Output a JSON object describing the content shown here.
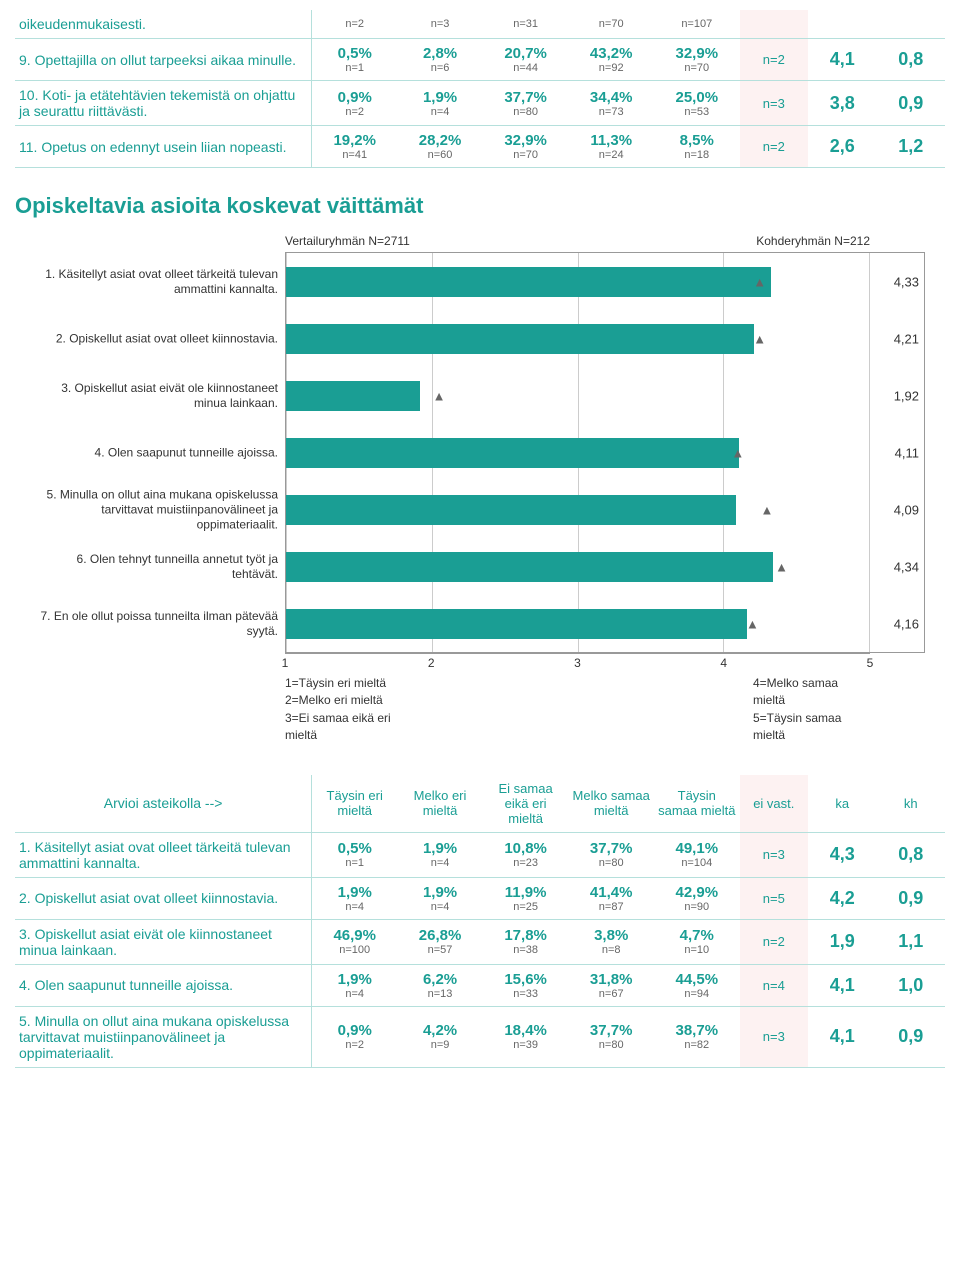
{
  "colors": {
    "accent": "#1a9e94",
    "row_border": "#b5e0dc",
    "eivast_bg": "#fdf2f2",
    "bar": "#1a9e94",
    "grid": "#cccccc",
    "axis": "#999999",
    "marker": "#666666"
  },
  "top_table": {
    "header_n": [
      "n=2",
      "n=3",
      "n=31",
      "n=70",
      "n=107"
    ],
    "header_trailing": "oikeudenmukaisesti.",
    "rows": [
      {
        "label": "9. Opettajilla on ollut tarpeeksi aikaa minulle.",
        "cells": [
          {
            "p": "0,5%",
            "n": "n=1"
          },
          {
            "p": "2,8%",
            "n": "n=6"
          },
          {
            "p": "20,7%",
            "n": "n=44"
          },
          {
            "p": "43,2%",
            "n": "n=92"
          },
          {
            "p": "32,9%",
            "n": "n=70"
          }
        ],
        "eivast": "n=2",
        "ka": "4,1",
        "kh": "0,8"
      },
      {
        "label": "10. Koti- ja etätehtävien tekemistä on ohjattu ja seurattu riittävästi.",
        "cells": [
          {
            "p": "0,9%",
            "n": "n=2"
          },
          {
            "p": "1,9%",
            "n": "n=4"
          },
          {
            "p": "37,7%",
            "n": "n=80"
          },
          {
            "p": "34,4%",
            "n": "n=73"
          },
          {
            "p": "25,0%",
            "n": "n=53"
          }
        ],
        "eivast": "n=3",
        "ka": "3,8",
        "kh": "0,9"
      },
      {
        "label": "11. Opetus on edennyt usein liian nopeasti.",
        "cells": [
          {
            "p": "19,2%",
            "n": "n=41"
          },
          {
            "p": "28,2%",
            "n": "n=60"
          },
          {
            "p": "32,9%",
            "n": "n=70"
          },
          {
            "p": "11,3%",
            "n": "n=24"
          },
          {
            "p": "8,5%",
            "n": "n=18"
          }
        ],
        "eivast": "n=2",
        "ka": "2,6",
        "kh": "1,2"
      }
    ]
  },
  "section_title": "Opiskeltavia asioita koskevat väittämät",
  "chart": {
    "type": "horizontal_bar",
    "top_left": "Vertailuryhmän N=2711",
    "top_right": "Kohderyhmän N=212",
    "xmin": 1,
    "xmax": 5,
    "xticks": [
      1,
      2,
      3,
      4,
      5
    ],
    "legend_left": [
      "1=Täysin eri mieltä",
      "2=Melko eri mieltä",
      "3=Ei samaa eikä eri mieltä"
    ],
    "legend_right": [
      "4=Melko samaa mieltä",
      "5=Täysin samaa mieltä"
    ],
    "marker_symbol": "▲",
    "bars": [
      {
        "label": "1. Käsitellyt asiat ovat olleet tärkeitä tulevan ammattini kannalta.",
        "value": 4.33,
        "marker": 4.25,
        "text": "4,33"
      },
      {
        "label": "2. Opiskellut asiat ovat olleet kiinnostavia.",
        "value": 4.21,
        "marker": 4.25,
        "text": "4,21"
      },
      {
        "label": "3. Opiskellut asiat eivät ole kiinnostaneet minua lainkaan.",
        "value": 1.92,
        "marker": 2.05,
        "text": "1,92"
      },
      {
        "label": "4. Olen saapunut tunneille ajoissa.",
        "value": 4.11,
        "marker": 4.1,
        "text": "4,11"
      },
      {
        "label": "5. Minulla on ollut aina mukana opiskelussa tarvittavat muistiinpanovälineet ja oppimateriaalit.",
        "value": 4.09,
        "marker": 4.3,
        "text": "4,09"
      },
      {
        "label": "6. Olen tehnyt tunneilla annetut työt ja tehtävät.",
        "value": 4.34,
        "marker": 4.4,
        "text": "4,34"
      },
      {
        "label": "7. En ole ollut poissa tunneilta ilman pätevää syytä.",
        "value": 4.16,
        "marker": 4.2,
        "text": "4,16"
      }
    ]
  },
  "bottom_table": {
    "header_label": "Arvioi asteikolla -->",
    "columns": [
      "Täysin eri mieltä",
      "Melko eri mieltä",
      "Ei samaa eikä eri mieltä",
      "Melko samaa mieltä",
      "Täysin samaa mieltä",
      "ei vast.",
      "ka",
      "kh"
    ],
    "rows": [
      {
        "label": "1. Käsitellyt asiat ovat olleet tärkeitä tulevan ammattini kannalta.",
        "cells": [
          {
            "p": "0,5%",
            "n": "n=1"
          },
          {
            "p": "1,9%",
            "n": "n=4"
          },
          {
            "p": "10,8%",
            "n": "n=23"
          },
          {
            "p": "37,7%",
            "n": "n=80"
          },
          {
            "p": "49,1%",
            "n": "n=104"
          }
        ],
        "eivast": "n=3",
        "ka": "4,3",
        "kh": "0,8"
      },
      {
        "label": "2. Opiskellut asiat ovat olleet kiinnostavia.",
        "cells": [
          {
            "p": "1,9%",
            "n": "n=4"
          },
          {
            "p": "1,9%",
            "n": "n=4"
          },
          {
            "p": "11,9%",
            "n": "n=25"
          },
          {
            "p": "41,4%",
            "n": "n=87"
          },
          {
            "p": "42,9%",
            "n": "n=90"
          }
        ],
        "eivast": "n=5",
        "ka": "4,2",
        "kh": "0,9"
      },
      {
        "label": "3. Opiskellut asiat eivät ole kiinnostaneet minua lainkaan.",
        "cells": [
          {
            "p": "46,9%",
            "n": "n=100"
          },
          {
            "p": "26,8%",
            "n": "n=57"
          },
          {
            "p": "17,8%",
            "n": "n=38"
          },
          {
            "p": "3,8%",
            "n": "n=8"
          },
          {
            "p": "4,7%",
            "n": "n=10"
          }
        ],
        "eivast": "n=2",
        "ka": "1,9",
        "kh": "1,1"
      },
      {
        "label": "4. Olen saapunut tunneille ajoissa.",
        "cells": [
          {
            "p": "1,9%",
            "n": "n=4"
          },
          {
            "p": "6,2%",
            "n": "n=13"
          },
          {
            "p": "15,6%",
            "n": "n=33"
          },
          {
            "p": "31,8%",
            "n": "n=67"
          },
          {
            "p": "44,5%",
            "n": "n=94"
          }
        ],
        "eivast": "n=4",
        "ka": "4,1",
        "kh": "1,0"
      },
      {
        "label": "5. Minulla on ollut aina mukana opiskelussa tarvittavat muistiinpanovälineet ja oppimateriaalit.",
        "cells": [
          {
            "p": "0,9%",
            "n": "n=2"
          },
          {
            "p": "4,2%",
            "n": "n=9"
          },
          {
            "p": "18,4%",
            "n": "n=39"
          },
          {
            "p": "37,7%",
            "n": "n=80"
          },
          {
            "p": "38,7%",
            "n": "n=82"
          }
        ],
        "eivast": "n=3",
        "ka": "4,1",
        "kh": "0,9"
      }
    ]
  }
}
